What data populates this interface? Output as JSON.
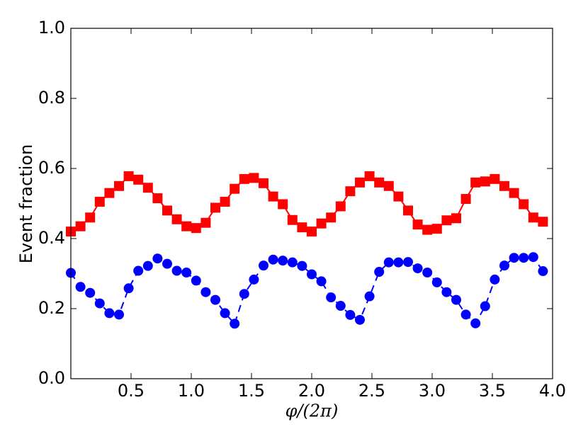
{
  "chart_data": {
    "type": "line",
    "ylabel": "Event fraction",
    "xlabel": "φ/(2π)",
    "xlim": [
      0,
      4
    ],
    "ylim": [
      0,
      1
    ],
    "xticks": [
      0.5,
      {
        "value": 1,
        "label": "1.0"
      },
      1.5,
      {
        "value": 2,
        "label": "2.0"
      },
      2.5,
      {
        "value": 3,
        "label": "3.0"
      },
      3.5,
      {
        "value": 4,
        "label": "4.0"
      }
    ],
    "yticks": [
      {
        "value": 0,
        "label": "0.0"
      },
      0.2,
      0.4,
      0.6,
      0.8,
      {
        "value": 1,
        "label": "1.0"
      }
    ],
    "grid": false,
    "x": [
      0,
      0.08,
      0.16,
      0.24,
      0.32,
      0.4,
      0.48,
      0.56,
      0.64,
      0.72,
      0.8,
      0.88,
      0.96,
      1.04,
      1.12,
      1.2,
      1.28,
      1.36,
      1.44,
      1.52,
      1.6,
      1.68,
      1.76,
      1.84,
      1.92,
      2.0,
      2.08,
      2.16,
      2.24,
      2.32,
      2.4,
      2.48,
      2.56,
      2.64,
      2.72,
      2.8,
      2.88,
      2.96,
      3.04,
      3.12,
      3.2,
      3.28,
      3.36,
      3.44,
      3.52,
      3.6,
      3.68,
      3.76,
      3.84,
      3.92
    ],
    "series": [
      {
        "color": "#ff0000",
        "marker": "square",
        "linestyle": "solid",
        "values": [
          0.42,
          0.435,
          0.46,
          0.505,
          0.53,
          0.55,
          0.578,
          0.568,
          0.545,
          0.515,
          0.48,
          0.455,
          0.435,
          0.43,
          0.445,
          0.488,
          0.505,
          0.542,
          0.57,
          0.573,
          0.558,
          0.52,
          0.498,
          0.453,
          0.432,
          0.42,
          0.443,
          0.46,
          0.492,
          0.535,
          0.56,
          0.578,
          0.56,
          0.55,
          0.52,
          0.48,
          0.44,
          0.425,
          0.428,
          0.452,
          0.458,
          0.513,
          0.56,
          0.563,
          0.57,
          0.55,
          0.53,
          0.498,
          0.46,
          0.448
        ]
      },
      {
        "color": "#0000ff",
        "marker": "circle",
        "linestyle": "dashed",
        "values": [
          0.302,
          0.262,
          0.245,
          0.215,
          0.187,
          0.183,
          0.258,
          0.308,
          0.322,
          0.343,
          0.328,
          0.308,
          0.303,
          0.28,
          0.247,
          0.225,
          0.187,
          0.157,
          0.242,
          0.283,
          0.323,
          0.34,
          0.337,
          0.332,
          0.322,
          0.298,
          0.278,
          0.232,
          0.208,
          0.182,
          0.168,
          0.235,
          0.305,
          0.332,
          0.332,
          0.333,
          0.315,
          0.303,
          0.275,
          0.247,
          0.225,
          0.183,
          0.158,
          0.207,
          0.283,
          0.323,
          0.345,
          0.345,
          0.347,
          0.307
        ]
      }
    ]
  }
}
